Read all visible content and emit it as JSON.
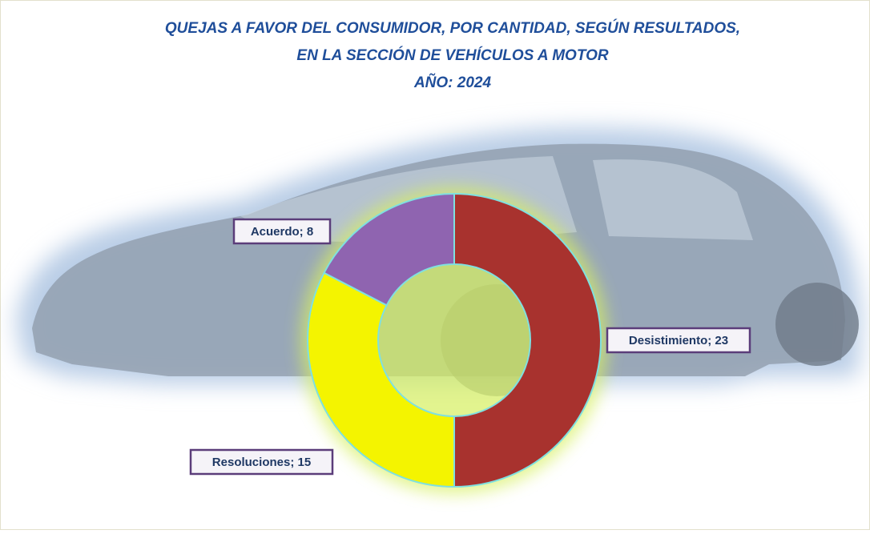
{
  "chart_data": {
    "type": "donut",
    "title": [
      "QUEJAS A FAVOR DEL CONSUMIDOR, POR CANTIDAD, SEGÚN RESULTADOS,",
      "EN LA SECCIÓN DE VEHÍCULOS A  MOTOR",
      "AÑO: 2024"
    ],
    "categories": [
      "Desistimiento",
      "Resoluciones",
      "Acuerdo"
    ],
    "values": [
      23,
      15,
      8
    ],
    "value_labels": [
      "Desistimiento; 23",
      "Resoluciones; 15",
      "Acuerdo; 8"
    ],
    "colors": [
      "#a8322e",
      "#f4f400",
      "#8f64b0"
    ]
  }
}
